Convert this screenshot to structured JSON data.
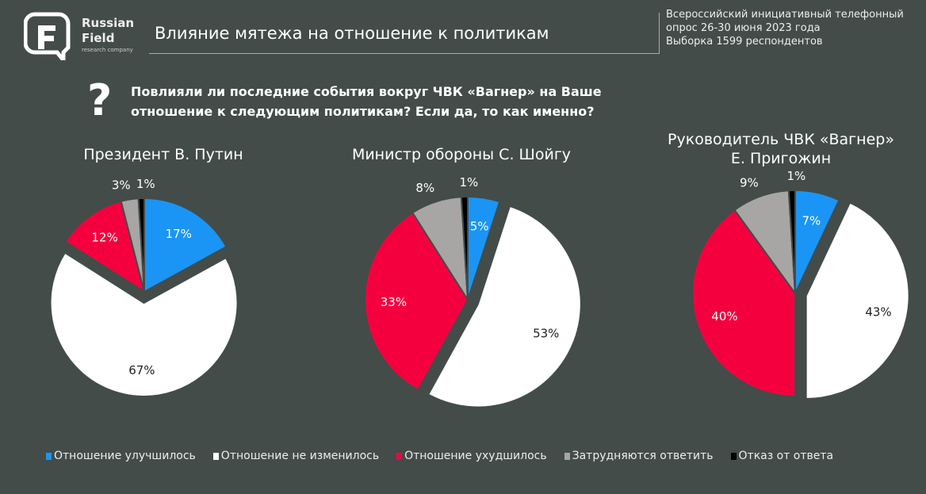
{
  "header": {
    "brand": "Russian",
    "brand2": "Field",
    "brand_sub": "research company",
    "title": "Влияние мятежа на отношение к политикам",
    "meta": [
      "Всероссийский инициативный телефонный",
      "опрос 26-30 июня 2023 года",
      "Выборка 1599 респондентов"
    ]
  },
  "question": {
    "icon": "question-mark-icon",
    "line1": "Повлияли ли последние события вокруг ЧВК «Вагнер» на Ваше",
    "line2": "отношение к следующим политикам? Если да, то как именно?"
  },
  "chart_data": [
    {
      "type": "pie",
      "title": "Президент В. Путин",
      "categories": [
        "Отношение улучшилось",
        "Отношение не изменилось",
        "Отношение ухудшилось",
        "Затрудняются ответить",
        "Отказ от ответа"
      ],
      "values": [
        17,
        67,
        12,
        3,
        1
      ],
      "labels": [
        "17%",
        "67%",
        "12%",
        "3%",
        "1%"
      ]
    },
    {
      "type": "pie",
      "title": "Министр обороны С. Шойгу",
      "categories": [
        "Отношение улучшилось",
        "Отношение не изменилось",
        "Отношение ухудшилось",
        "Затрудняются ответить",
        "Отказ от ответа"
      ],
      "values": [
        5,
        53,
        33,
        8,
        1
      ],
      "labels": [
        "5%",
        "53%",
        "33%",
        "8%",
        "1%"
      ]
    },
    {
      "type": "pie",
      "title": "Руководитель ЧВК «Вагнер»",
      "title2": "Е. Пригожин",
      "categories": [
        "Отношение улучшилось",
        "Отношение не изменилось",
        "Отношение ухудшилось",
        "Затрудняются ответить",
        "Отказ от ответа"
      ],
      "values": [
        7,
        43,
        40,
        9,
        1
      ],
      "labels": [
        "7%",
        "43%",
        "40%",
        "9%",
        "1%"
      ]
    }
  ],
  "legend": [
    {
      "label": "Отношение улучшилось",
      "color": "#1a95f5"
    },
    {
      "label": "Отношение не изменилось",
      "color": "#ffffff"
    },
    {
      "label": "Отношение ухудшилось",
      "color": "#f5003f"
    },
    {
      "label": "Затрудняются ответить",
      "color": "#a8a5a5"
    },
    {
      "label": "Отказ от ответа",
      "color": "#000000"
    }
  ]
}
